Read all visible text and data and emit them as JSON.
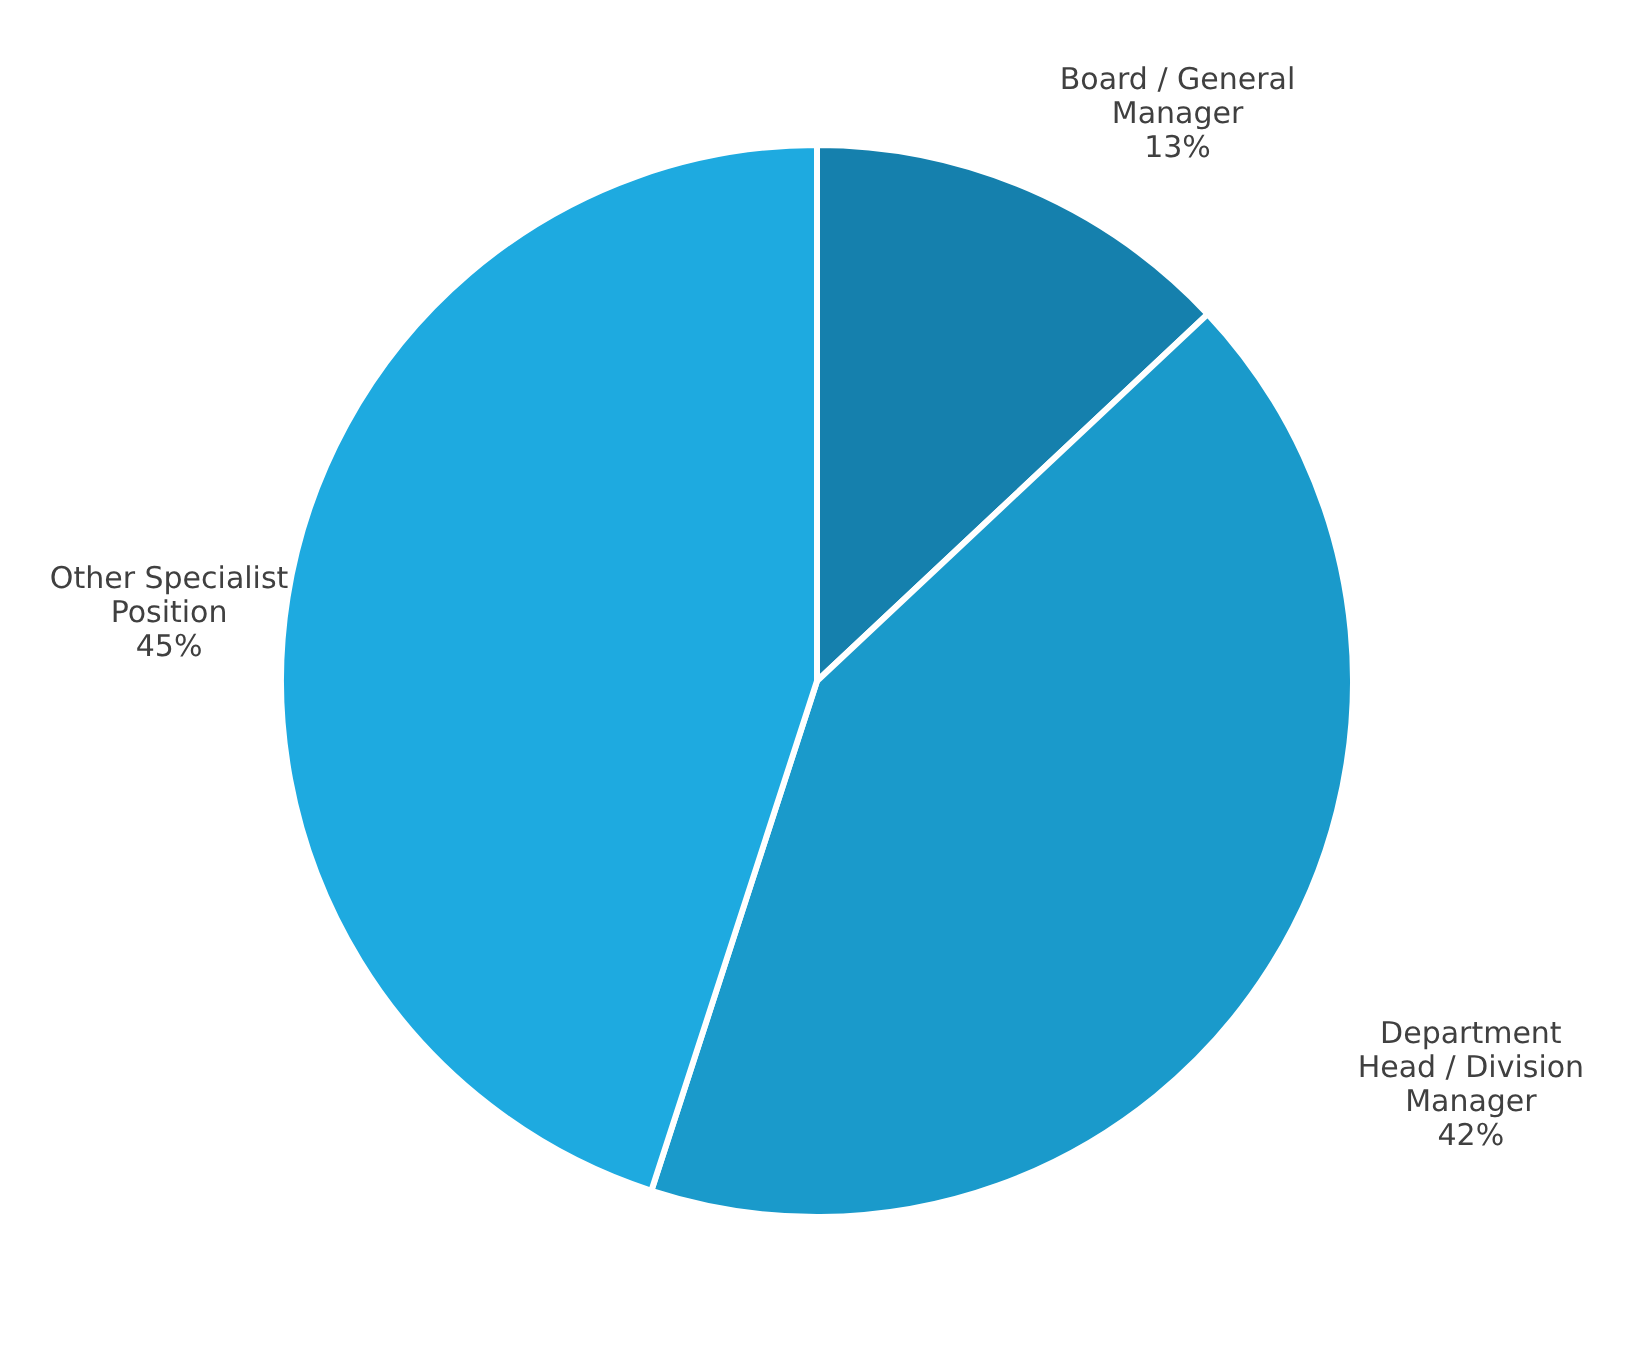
{
  "chart_data": {
    "type": "pie",
    "categories": [
      "Board / General\nManager",
      "Department\nHead / Division\nManager",
      "Other Specialist\nPosition"
    ],
    "values": [
      13,
      42,
      45
    ],
    "value_labels": [
      "13%",
      "42%",
      "45%"
    ],
    "colors": [
      "#1580ad",
      "#1a9acb",
      "#1eaae0"
    ]
  }
}
